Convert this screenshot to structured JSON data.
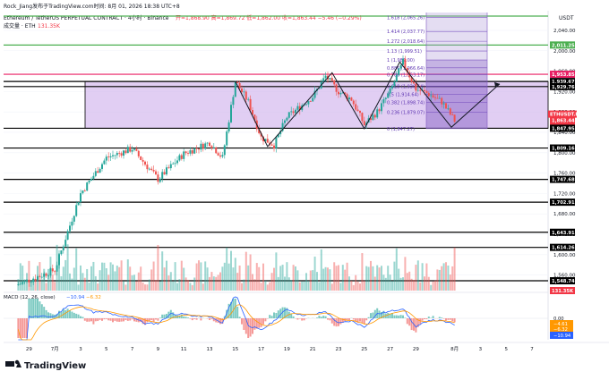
{
  "header": {
    "byline": "Rock_Jiang发布于TradingView.com时间: 8月 01, 2026 18:38 UTC+8",
    "symbol_line": "Ethereum / TetherUS PERPETUAL CONTRACT · 4小时 · Binance",
    "ohlc": "开=1,868.90  高=1,869.72  低=1,862.00  收=1,863.44  −5.46 (−0.29%)",
    "volume_label": "成交量 · ETH",
    "volume_value": "131.35K"
  },
  "axis": {
    "currency": "USDT",
    "ticks": [
      "2,040.00",
      "2,000.00",
      "1,960.00",
      "1,920.00",
      "1,880.00",
      "1,840.00",
      "1,800.00",
      "1,760.00",
      "1,720.00",
      "1,680.00",
      "1,640.00",
      "1,600.00",
      "1,560.00"
    ],
    "x_ticks": [
      "29",
      "7月",
      "3",
      "5",
      "7",
      "9",
      "11",
      "13",
      "15",
      "17",
      "19",
      "21",
      "23",
      "25",
      "27",
      "29",
      "8月",
      "3",
      "5",
      "7"
    ]
  },
  "price_tags": [
    {
      "label": "2,011.25",
      "color": "#4caf50"
    },
    {
      "label": "1,953.85",
      "color": "#e91e63"
    },
    {
      "label": "1,939.67",
      "color": "#000000"
    },
    {
      "label": "1,929.76",
      "color": "#000000"
    },
    {
      "label": "ETHUSDT.P",
      "color": "#f23645"
    },
    {
      "label": "1,863.44",
      "color": "#f23645"
    },
    {
      "label": "01:21:10",
      "color": "#f23645"
    },
    {
      "label": "1,847.95",
      "color": "#000000"
    },
    {
      "label": "1,809.16",
      "color": "#000000"
    },
    {
      "label": "1,747.68",
      "color": "#000000"
    },
    {
      "label": "1,702.91",
      "color": "#000000"
    },
    {
      "label": "1,643.91",
      "color": "#000000"
    },
    {
      "label": "1,614.26",
      "color": "#000000"
    },
    {
      "label": "1,548.74",
      "color": "#000000"
    },
    {
      "label": "131.35K",
      "color": "#f23645"
    }
  ],
  "fib_labels": [
    "1.618 (2,065.26)",
    "1.414 (2,037.77)",
    "1.272 (2,018.64)",
    "1.13 (1,999.51)",
    "1 (1,982.00)",
    "0.886 (1,966.64)",
    "0.786 (1,953.17)",
    "0.618 (1,930.54)",
    "0.5 (1,914.64)",
    "0.382 (1,898.74)",
    "0.236 (1,879.07)",
    "0 (1,847.27)"
  ],
  "macd": {
    "title": "MACD (12, 26, close)",
    "values": [
      "−10.94",
      "−6.32"
    ],
    "axis_ticks": [
      "0.00",
      "−4.61",
      "−6.32",
      "−10.94"
    ]
  },
  "footer": {
    "brand": "TradingView"
  },
  "colors": {
    "up": "#26a69a",
    "down": "#ef5350",
    "zone": "#c9a6ea",
    "fib": "#7e57c2",
    "green": "#4caf50",
    "pink": "#e91e63"
  },
  "chart_data": {
    "type": "candlestick",
    "timeframe": "4h",
    "ylim": [
      1540,
      2075
    ],
    "x_range": [
      "2026-06-28",
      "2026-08-07"
    ],
    "price_path": [
      [
        "2026-06-28",
        1540
      ],
      [
        "2026-07-01",
        1570
      ],
      [
        "2026-07-03",
        1720
      ],
      [
        "2026-07-05",
        1790
      ],
      [
        "2026-07-07",
        1808
      ],
      [
        "2026-07-09",
        1748
      ],
      [
        "2026-07-11",
        1798
      ],
      [
        "2026-07-13",
        1820
      ],
      [
        "2026-07-14",
        1790
      ],
      [
        "2026-07-15",
        1940
      ],
      [
        "2026-07-16",
        1900
      ],
      [
        "2026-07-17",
        1830
      ],
      [
        "2026-07-18",
        1815
      ],
      [
        "2026-07-19",
        1870
      ],
      [
        "2026-07-21",
        1910
      ],
      [
        "2026-07-22",
        1950
      ],
      [
        "2026-07-23",
        1920
      ],
      [
        "2026-07-24",
        1905
      ],
      [
        "2026-07-25",
        1855
      ],
      [
        "2026-07-26",
        1880
      ],
      [
        "2026-07-27",
        1920
      ],
      [
        "2026-07-28",
        1978
      ],
      [
        "2026-07-29",
        1925
      ],
      [
        "2026-07-30",
        1915
      ],
      [
        "2026-07-31",
        1900
      ],
      [
        "2026-08-01",
        1863
      ]
    ],
    "horizontal_levels": [
      2011.25,
      1953.85,
      1939.67,
      1929.76,
      1847.95,
      1809.16,
      1747.68,
      1702.91,
      1643.91,
      1614.26,
      1548.74
    ],
    "zone": {
      "from": 1847.95,
      "to": 1939.67
    },
    "current_price": 1863.44
  }
}
